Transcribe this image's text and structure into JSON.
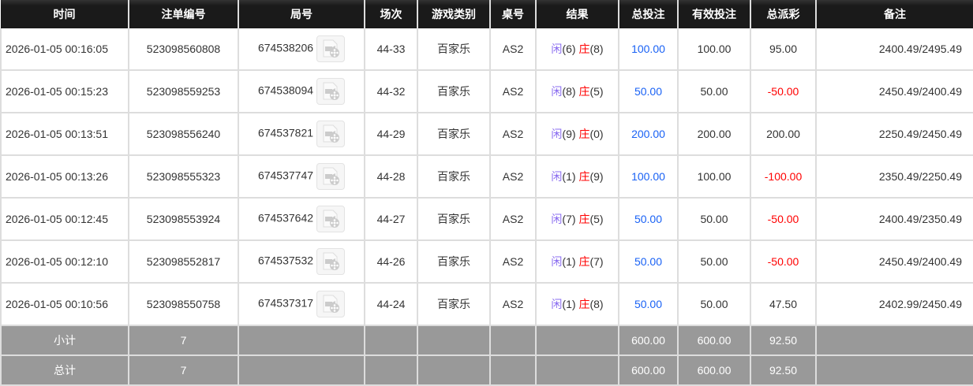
{
  "headers": [
    "时间",
    "注单编号",
    "局号",
    "场次",
    "游戏类别",
    "桌号",
    "结果",
    "总投注",
    "有效投注",
    "总派彩",
    "备注"
  ],
  "rows": [
    {
      "time": "2026-01-05 00:16:05",
      "bet_id": "523098560808",
      "round": "674538206",
      "session": "44-33",
      "game": "百家乐",
      "table": "AS2",
      "player": "闲",
      "player_pts": "(6)",
      "banker": "庄",
      "banker_pts": "(8)",
      "total": "100.00",
      "valid": "100.00",
      "payout": "95.00",
      "payout_neg": false,
      "remark": "2400.49/2495.49"
    },
    {
      "time": "2026-01-05 00:15:23",
      "bet_id": "523098559253",
      "round": "674538094",
      "session": "44-32",
      "game": "百家乐",
      "table": "AS2",
      "player": "闲",
      "player_pts": "(8)",
      "banker": "庄",
      "banker_pts": "(5)",
      "total": "50.00",
      "valid": "50.00",
      "payout": "-50.00",
      "payout_neg": true,
      "remark": "2450.49/2400.49"
    },
    {
      "time": "2026-01-05 00:13:51",
      "bet_id": "523098556240",
      "round": "674537821",
      "session": "44-29",
      "game": "百家乐",
      "table": "AS2",
      "player": "闲",
      "player_pts": "(9)",
      "banker": "庄",
      "banker_pts": "(0)",
      "total": "200.00",
      "valid": "200.00",
      "payout": "200.00",
      "payout_neg": false,
      "remark": "2250.49/2450.49"
    },
    {
      "time": "2026-01-05 00:13:26",
      "bet_id": "523098555323",
      "round": "674537747",
      "session": "44-28",
      "game": "百家乐",
      "table": "AS2",
      "player": "闲",
      "player_pts": "(1)",
      "banker": "庄",
      "banker_pts": "(9)",
      "total": "100.00",
      "valid": "100.00",
      "payout": "-100.00",
      "payout_neg": true,
      "remark": "2350.49/2250.49"
    },
    {
      "time": "2026-01-05 00:12:45",
      "bet_id": "523098553924",
      "round": "674537642",
      "session": "44-27",
      "game": "百家乐",
      "table": "AS2",
      "player": "闲",
      "player_pts": "(7)",
      "banker": "庄",
      "banker_pts": "(5)",
      "total": "50.00",
      "valid": "50.00",
      "payout": "-50.00",
      "payout_neg": true,
      "remark": "2400.49/2350.49"
    },
    {
      "time": "2026-01-05 00:12:10",
      "bet_id": "523098552817",
      "round": "674537532",
      "session": "44-26",
      "game": "百家乐",
      "table": "AS2",
      "player": "闲",
      "player_pts": "(1)",
      "banker": "庄",
      "banker_pts": "(7)",
      "total": "50.00",
      "valid": "50.00",
      "payout": "-50.00",
      "payout_neg": true,
      "remark": "2450.49/2400.49"
    },
    {
      "time": "2026-01-05 00:10:56",
      "bet_id": "523098550758",
      "round": "674537317",
      "session": "44-24",
      "game": "百家乐",
      "table": "AS2",
      "player": "闲",
      "player_pts": "(1)",
      "banker": "庄",
      "banker_pts": "(8)",
      "total": "50.00",
      "valid": "50.00",
      "payout": "47.50",
      "payout_neg": false,
      "remark": "2402.99/2450.49"
    }
  ],
  "summary": [
    {
      "label": "小计",
      "count": "7",
      "total": "600.00",
      "valid": "600.00",
      "payout": "92.50"
    },
    {
      "label": "总计",
      "count": "7",
      "total": "600.00",
      "valid": "600.00",
      "payout": "92.50"
    }
  ],
  "icons": {
    "replay": "video-replay-icon"
  },
  "colors": {
    "header_bg": "#1a1a1a",
    "summary_bg": "#999999",
    "bet_blue": "#1a62f5",
    "loss_red": "#ff0000",
    "player": "#8a6cf0",
    "banker": "#ff0000"
  }
}
